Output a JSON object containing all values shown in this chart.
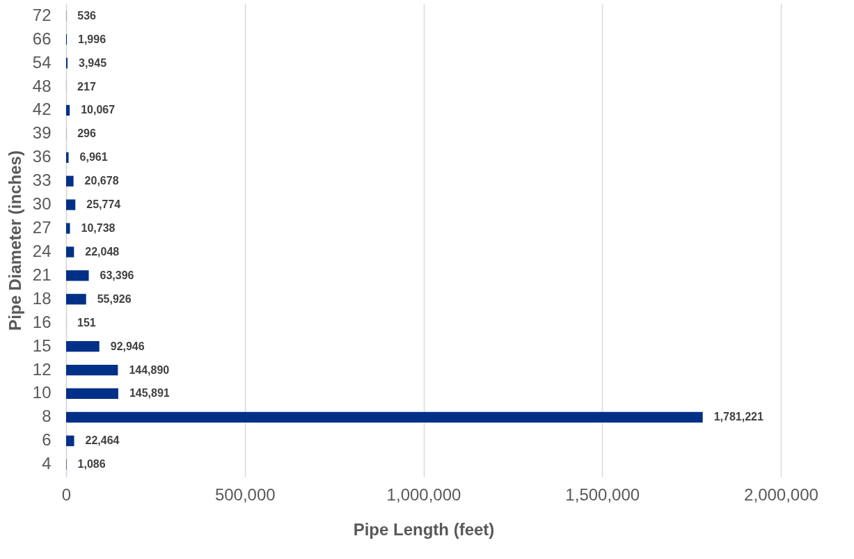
{
  "chart_data": {
    "type": "bar",
    "orientation": "horizontal",
    "xlabel": "Pipe Length (feet)",
    "ylabel": "Pipe Diameter (inches)",
    "categories": [
      "72",
      "66",
      "54",
      "48",
      "42",
      "39",
      "36",
      "33",
      "30",
      "27",
      "24",
      "21",
      "18",
      "16",
      "15",
      "12",
      "10",
      "8",
      "6",
      "4"
    ],
    "values": [
      536,
      1996,
      3945,
      217,
      10067,
      296,
      6961,
      20678,
      25774,
      10738,
      22048,
      63396,
      55926,
      151,
      92946,
      144890,
      145891,
      1781221,
      22464,
      1086
    ],
    "value_labels": [
      "536",
      "1,996",
      "3,945",
      "217",
      "10,067",
      "296",
      "6,961",
      "20,678",
      "25,774",
      "10,738",
      "22,048",
      "63,396",
      "55,926",
      "151",
      "92,946",
      "144,890",
      "145,891",
      "1,781,221",
      "22,464",
      "1,086"
    ],
    "color": "#003087",
    "xlim": [
      0,
      2000000
    ],
    "xticks": [
      0,
      {
        "value": 500000,
        "label": "500,000"
      },
      {
        "value": 1000000,
        "label": "1,000,000"
      },
      {
        "value": 1500000,
        "label": "1,500,000"
      },
      {
        "value": 2000000,
        "label": "2,000,000"
      }
    ],
    "grid": "x"
  }
}
